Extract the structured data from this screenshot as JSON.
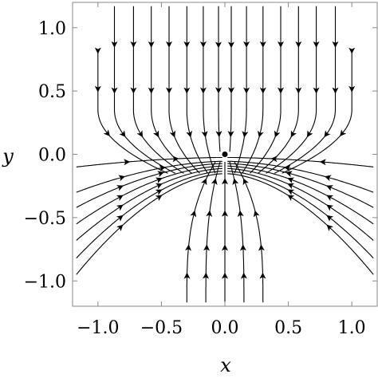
{
  "chart_data": {
    "type": "streamplot",
    "title": "",
    "xlabel": "x",
    "ylabel": "y",
    "xlim": [
      -1.2,
      1.2
    ],
    "ylim": [
      -1.2,
      1.2
    ],
    "xticks": [
      "-1.0",
      "-0.5",
      "0.0",
      "0.5",
      "1.0"
    ],
    "xtick_values": [
      -1.0,
      -0.5,
      0.0,
      0.5,
      1.0
    ],
    "yticks": [
      "-1.0",
      "-0.5",
      "0.0",
      "0.5",
      "1.0"
    ],
    "ytick_values": [
      -1.0,
      -0.5,
      0.0,
      0.5,
      1.0
    ],
    "grid": false,
    "fixed_point": {
      "x": 0.0,
      "y": 0.0
    },
    "line_color": "#000000",
    "frame_color": "#888888"
  }
}
